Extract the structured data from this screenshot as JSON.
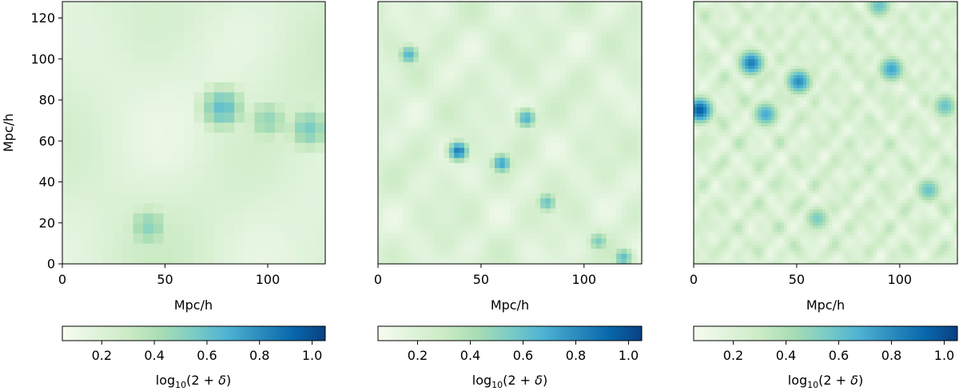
{
  "chart_data": [
    {
      "type": "heatmap",
      "title": "",
      "xlabel": "Mpc/h",
      "ylabel": "Mpc/h",
      "xlim": [
        0,
        128
      ],
      "ylim": [
        0,
        128
      ],
      "xticks": [
        0,
        50,
        100
      ],
      "yticks": [
        0,
        20,
        40,
        60,
        80,
        100,
        120
      ],
      "resolution": "coarse",
      "colorbar": {
        "label": "log10(2+δ)",
        "range": [
          0.05,
          1.05
        ],
        "ticks": [
          0.2,
          0.4,
          0.6,
          0.8,
          1.0
        ]
      },
      "hotspots_data_units": [
        [
          78,
          76,
          0.62
        ],
        [
          120,
          66,
          0.55
        ],
        [
          42,
          18,
          0.5
        ],
        [
          100,
          70,
          0.48
        ]
      ]
    },
    {
      "type": "heatmap",
      "title": "",
      "xlabel": "Mpc/h",
      "ylabel": "",
      "xlim": [
        0,
        128
      ],
      "ylim": [
        0,
        128
      ],
      "xticks": [
        0,
        50,
        100
      ],
      "yticks": [],
      "resolution": "medium",
      "colorbar": {
        "label": "log10(2+δ)",
        "range": [
          0.05,
          1.05
        ],
        "ticks": [
          0.2,
          0.4,
          0.6,
          0.8,
          1.0
        ]
      },
      "hotspots_data_units": [
        [
          39,
          55,
          0.85
        ],
        [
          60,
          49,
          0.72
        ],
        [
          72,
          71,
          0.68
        ],
        [
          15,
          102,
          0.66
        ],
        [
          82,
          30,
          0.6
        ],
        [
          119,
          3,
          0.62
        ],
        [
          107,
          11,
          0.55
        ]
      ]
    },
    {
      "type": "heatmap",
      "title": "",
      "xlabel": "Mpc/h",
      "ylabel": "",
      "xlim": [
        0,
        128
      ],
      "ylim": [
        0,
        128
      ],
      "xticks": [
        0,
        50,
        100
      ],
      "yticks": [],
      "resolution": "fine",
      "colorbar": {
        "label": "log10(2+δ)",
        "range": [
          0.05,
          1.05
        ],
        "ticks": [
          0.2,
          0.4,
          0.6,
          0.8,
          1.0
        ]
      },
      "hotspots_data_units": [
        [
          3,
          75,
          0.95
        ],
        [
          28,
          98,
          0.85
        ],
        [
          51,
          89,
          0.8
        ],
        [
          35,
          73,
          0.7
        ],
        [
          96,
          95,
          0.72
        ],
        [
          122,
          77,
          0.6
        ],
        [
          60,
          22,
          0.55
        ],
        [
          114,
          36,
          0.6
        ],
        [
          90,
          126,
          0.6
        ]
      ]
    }
  ],
  "colormap_stops": [
    "#f7fcf0",
    "#e0f3db",
    "#ccebc5",
    "#a8ddb5",
    "#7bccc4",
    "#4eb3d3",
    "#2b8cbe",
    "#0868ac",
    "#084081"
  ]
}
